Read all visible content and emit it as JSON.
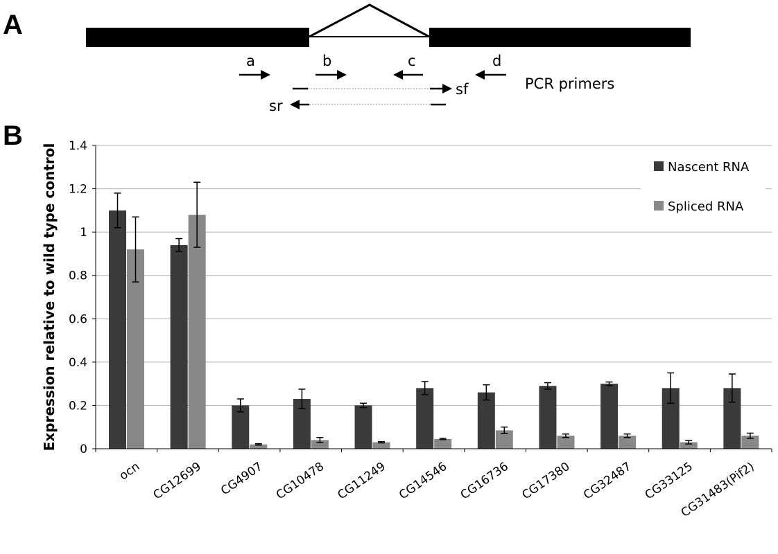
{
  "panel_a": {
    "label": "A",
    "primers": {
      "a": "a",
      "b": "b",
      "c": "c",
      "d": "d",
      "sf": "sf",
      "sr": "sr"
    },
    "caption": "PCR primers"
  },
  "panel_b": {
    "label": "B"
  },
  "chart_data": {
    "type": "bar",
    "xlabel": "",
    "ylabel": "Expression relative to wild type control",
    "ylim": [
      0,
      1.4
    ],
    "yticks": [
      "0",
      "0.2",
      "0.4",
      "0.6",
      "0.8",
      "1",
      "1.2",
      "1.4"
    ],
    "grid": true,
    "legend_position": "top-right",
    "categories": [
      "ocn",
      "CG12699",
      "CG4907",
      "CG10478",
      "CG11249",
      "CG14546",
      "CG16736",
      "CG17380",
      "CG32487",
      "CG33125",
      "CG31483(Pif2)"
    ],
    "series": [
      {
        "name": "Nascent RNA",
        "color": "#3a3a3a",
        "values": [
          1.1,
          0.94,
          0.2,
          0.23,
          0.2,
          0.28,
          0.26,
          0.29,
          0.3,
          0.28,
          0.28
        ],
        "errors": [
          0.08,
          0.03,
          0.03,
          0.045,
          0.01,
          0.03,
          0.035,
          0.015,
          0.008,
          0.07,
          0.065
        ]
      },
      {
        "name": "Spliced RNA",
        "color": "#888888",
        "values": [
          0.92,
          1.08,
          0.02,
          0.04,
          0.03,
          0.045,
          0.085,
          0.06,
          0.06,
          0.03,
          0.06
        ],
        "errors": [
          0.15,
          0.15,
          0.003,
          0.012,
          0.003,
          0.003,
          0.015,
          0.008,
          0.008,
          0.008,
          0.012
        ]
      }
    ]
  }
}
